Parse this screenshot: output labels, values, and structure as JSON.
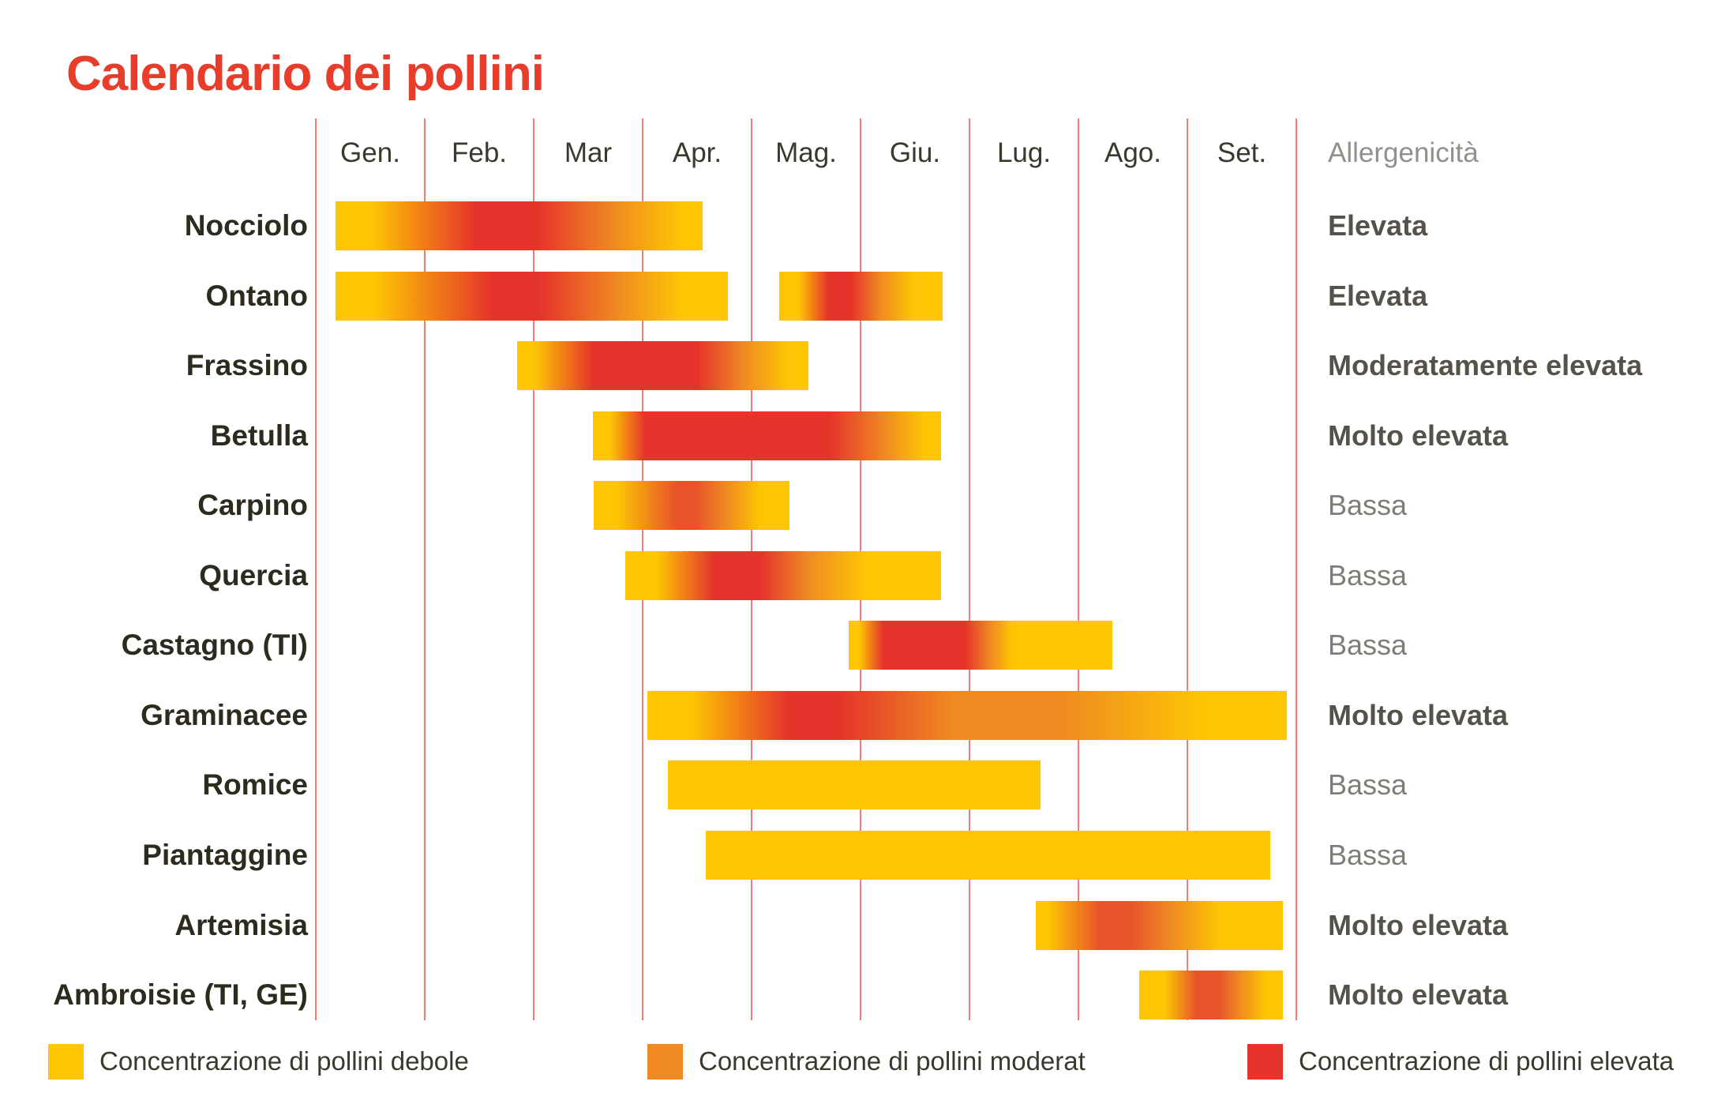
{
  "title": "Calendario dei pollini",
  "allergenicity_header": "Allergenicità",
  "colors": {
    "title": "#e93d2c",
    "grid": "#ee7f72",
    "text": "#3b382c",
    "row_label": "#2d2a1e",
    "allerg_header": "#92908a",
    "allerg_bold": "#55524a",
    "allerg_light": "#807d77",
    "yellow": "#fdc504",
    "orange": "#ef8b22",
    "red": "#e5342b",
    "red_orange": "#e8532a"
  },
  "legend": {
    "items": [
      {
        "swatch": "#fdc504",
        "label": "Concentrazione di pollini debole"
      },
      {
        "swatch": "#ef8b22",
        "label": "Concentrazione di pollini moderat"
      },
      {
        "swatch": "#e5342b",
        "label": "Concentrazione di pollini elevata"
      }
    ]
  },
  "chart_data": {
    "type": "gantt",
    "unit": "month position: 0 = inizio Gennaio, 9 = fine Settembre",
    "months": [
      "Gen.",
      "Feb.",
      "Mar",
      "Apr.",
      "Mag.",
      "Giu.",
      "Lug.",
      "Ago.",
      "Set."
    ],
    "rows": [
      {
        "name": "Nocciolo",
        "allergenicita": "Elevata",
        "emphasis": "bold",
        "bars": [
          {
            "start": 0.18,
            "end": 3.55,
            "stops": [
              {
                "c": "#fdc504",
                "p": 0
              },
              {
                "c": "#fdc504",
                "p": 10
              },
              {
                "c": "#e5342b",
                "p": 38
              },
              {
                "c": "#e5342b",
                "p": 55
              },
              {
                "c": "#ef8b22",
                "p": 76
              },
              {
                "c": "#fdc504",
                "p": 94
              },
              {
                "c": "#fdc504",
                "p": 100
              }
            ]
          }
        ]
      },
      {
        "name": "Ontano",
        "allergenicita": "Elevata",
        "emphasis": "bold",
        "bars": [
          {
            "start": 0.18,
            "end": 3.78,
            "stops": [
              {
                "c": "#fdc504",
                "p": 0
              },
              {
                "c": "#fdc504",
                "p": 10
              },
              {
                "c": "#e5342b",
                "p": 40
              },
              {
                "c": "#e5342b",
                "p": 52
              },
              {
                "c": "#ef8b22",
                "p": 72
              },
              {
                "c": "#fdc504",
                "p": 88
              },
              {
                "c": "#fdc504",
                "p": 100
              }
            ]
          },
          {
            "start": 4.25,
            "end": 5.75,
            "stops": [
              {
                "c": "#fdc504",
                "p": 0
              },
              {
                "c": "#fdc504",
                "p": 12
              },
              {
                "c": "#e5342b",
                "p": 30
              },
              {
                "c": "#e5342b",
                "p": 44
              },
              {
                "c": "#ef8b22",
                "p": 62
              },
              {
                "c": "#fdc504",
                "p": 82
              },
              {
                "c": "#fdc504",
                "p": 100
              }
            ]
          }
        ]
      },
      {
        "name": "Frassino",
        "allergenicita": "Moderatamente elevata",
        "emphasis": "bold",
        "bars": [
          {
            "start": 1.85,
            "end": 4.52,
            "stops": [
              {
                "c": "#fdc504",
                "p": 0
              },
              {
                "c": "#fdc504",
                "p": 6
              },
              {
                "c": "#e5342b",
                "p": 26
              },
              {
                "c": "#e5342b",
                "p": 62
              },
              {
                "c": "#ef8b22",
                "p": 78
              },
              {
                "c": "#fdc504",
                "p": 93
              },
              {
                "c": "#fdc504",
                "p": 100
              }
            ]
          }
        ]
      },
      {
        "name": "Betulla",
        "allergenicita": "Molto elevata",
        "emphasis": "bold",
        "bars": [
          {
            "start": 2.54,
            "end": 5.74,
            "stops": [
              {
                "c": "#fdc504",
                "p": 0
              },
              {
                "c": "#fdc504",
                "p": 5
              },
              {
                "c": "#e5342b",
                "p": 15
              },
              {
                "c": "#e5342b",
                "p": 68
              },
              {
                "c": "#ef8b22",
                "p": 84
              },
              {
                "c": "#fdc504",
                "p": 95
              },
              {
                "c": "#fdc504",
                "p": 100
              }
            ]
          }
        ]
      },
      {
        "name": "Carpino",
        "allergenicita": "Bassa",
        "emphasis": "regular",
        "bars": [
          {
            "start": 2.55,
            "end": 4.35,
            "stops": [
              {
                "c": "#fdc504",
                "p": 0
              },
              {
                "c": "#fdc504",
                "p": 12
              },
              {
                "c": "#e8532a",
                "p": 42
              },
              {
                "c": "#e8532a",
                "p": 52
              },
              {
                "c": "#ef8b22",
                "p": 68
              },
              {
                "c": "#fdc504",
                "p": 85
              },
              {
                "c": "#fdc504",
                "p": 100
              }
            ]
          }
        ]
      },
      {
        "name": "Quercia",
        "allergenicita": "Bassa",
        "emphasis": "regular",
        "bars": [
          {
            "start": 2.84,
            "end": 5.74,
            "stops": [
              {
                "c": "#fdc504",
                "p": 0
              },
              {
                "c": "#fdc504",
                "p": 10
              },
              {
                "c": "#e5342b",
                "p": 28
              },
              {
                "c": "#e5342b",
                "p": 43
              },
              {
                "c": "#ef8b22",
                "p": 58
              },
              {
                "c": "#fdc504",
                "p": 76
              },
              {
                "c": "#fdc504",
                "p": 100
              }
            ]
          }
        ]
      },
      {
        "name": "Castagno (TI)",
        "allergenicita": "Bassa",
        "emphasis": "regular",
        "bars": [
          {
            "start": 4.89,
            "end": 7.31,
            "stops": [
              {
                "c": "#fdc504",
                "p": 0
              },
              {
                "c": "#fdc504",
                "p": 4
              },
              {
                "c": "#e5342b",
                "p": 13
              },
              {
                "c": "#e5342b",
                "p": 44
              },
              {
                "c": "#ef8b22",
                "p": 54
              },
              {
                "c": "#fdc504",
                "p": 62
              },
              {
                "c": "#fdc504",
                "p": 100
              }
            ]
          }
        ]
      },
      {
        "name": "Graminacee",
        "allergenicita": "Molto elevata",
        "emphasis": "bold",
        "bars": [
          {
            "start": 3.04,
            "end": 8.91,
            "stops": [
              {
                "c": "#fdc504",
                "p": 0
              },
              {
                "c": "#fdc504",
                "p": 7
              },
              {
                "c": "#e5342b",
                "p": 22
              },
              {
                "c": "#e5342b",
                "p": 30
              },
              {
                "c": "#ef8b22",
                "p": 48
              },
              {
                "c": "#ef8b22",
                "p": 65
              },
              {
                "c": "#fdc504",
                "p": 87
              },
              {
                "c": "#fdc504",
                "p": 100
              }
            ]
          }
        ]
      },
      {
        "name": "Romice",
        "allergenicita": "Bassa",
        "emphasis": "regular",
        "bars": [
          {
            "start": 3.23,
            "end": 6.65,
            "stops": [
              {
                "c": "#fdc504",
                "p": 0
              },
              {
                "c": "#fdc504",
                "p": 100
              }
            ]
          }
        ]
      },
      {
        "name": "Piantaggine",
        "allergenicita": "Bassa",
        "emphasis": "regular",
        "bars": [
          {
            "start": 3.58,
            "end": 8.76,
            "stops": [
              {
                "c": "#fdc504",
                "p": 0
              },
              {
                "c": "#fdc504",
                "p": 100
              }
            ]
          }
        ]
      },
      {
        "name": "Artemisia",
        "allergenicita": "Molto elevata",
        "emphasis": "bold",
        "bars": [
          {
            "start": 6.61,
            "end": 8.88,
            "stops": [
              {
                "c": "#fdc504",
                "p": 0
              },
              {
                "c": "#fdc504",
                "p": 5
              },
              {
                "c": "#e8532a",
                "p": 26
              },
              {
                "c": "#e8532a",
                "p": 38
              },
              {
                "c": "#ef8b22",
                "p": 55
              },
              {
                "c": "#fdc504",
                "p": 74
              },
              {
                "c": "#fdc504",
                "p": 100
              }
            ]
          }
        ]
      },
      {
        "name": "Ambroisie (TI, GE)",
        "allergenicita": "Molto elevata",
        "emphasis": "bold",
        "bars": [
          {
            "start": 7.56,
            "end": 8.88,
            "stops": [
              {
                "c": "#fdc504",
                "p": 0
              },
              {
                "c": "#fdc504",
                "p": 18
              },
              {
                "c": "#e8532a",
                "p": 40
              },
              {
                "c": "#e8532a",
                "p": 55
              },
              {
                "c": "#ef8b22",
                "p": 70
              },
              {
                "c": "#fdc504",
                "p": 88
              },
              {
                "c": "#fdc504",
                "p": 100
              }
            ]
          }
        ]
      }
    ]
  }
}
